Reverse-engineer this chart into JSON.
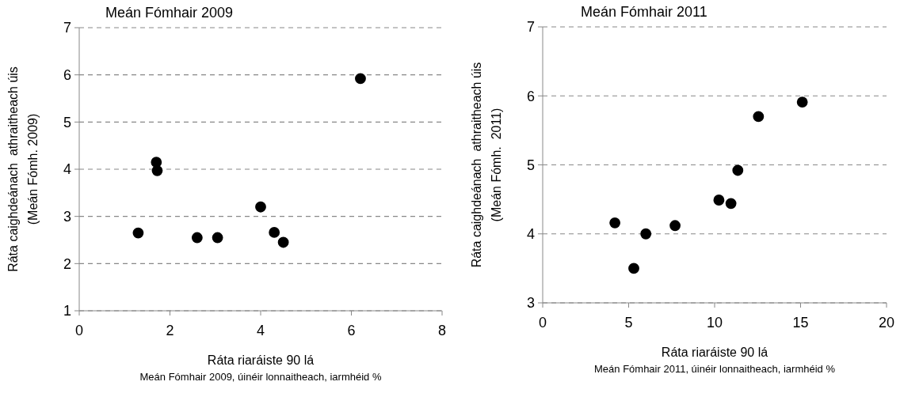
{
  "chart_data": [
    {
      "type": "scatter",
      "title": "Meán Fómhair 2009",
      "xlabel": "Ráta riaráiste 90 lá",
      "ylabel": "Ráta caighdeánach  athraitheach úis\n(Meán Fómh. 2009)",
      "annotations": [
        "Meán Fómhair 2009, úinéir lonnaitheach, iarmhéid %"
      ],
      "series": [
        {
          "color": "#000000",
          "x": [
            1.3,
            1.7,
            1.72,
            2.6,
            3.05,
            4.0,
            4.3,
            4.5,
            6.2
          ],
          "values": [
            2.65,
            4.15,
            3.97,
            2.55,
            2.55,
            3.2,
            2.66,
            2.45,
            5.92
          ]
        }
      ],
      "xlim": [
        0,
        8
      ],
      "xticks": [
        0,
        2,
        4,
        6,
        8
      ],
      "ylim": [
        1,
        7
      ],
      "yticks": [
        1,
        2,
        3,
        4,
        5,
        6,
        7
      ],
      "grid": "y",
      "marker": "circle"
    },
    {
      "type": "scatter",
      "title": "Meán Fómhair 2011",
      "xlabel": "Ráta riaráiste 90 lá",
      "ylabel": "Ráta caighdeánach  athraitheach úis\n(Meán Fómh.  2011)",
      "annotations": [
        "Meán Fómhair 2011, úinéir lonnaitheach, iarmhéid %"
      ],
      "series": [
        {
          "color": "#000000",
          "x": [
            4.2,
            5.3,
            6.0,
            7.7,
            10.25,
            10.95,
            11.35,
            12.55,
            15.1
          ],
          "values": [
            4.16,
            3.5,
            4.0,
            4.12,
            4.49,
            4.44,
            4.92,
            5.7,
            5.91
          ]
        }
      ],
      "xlim": [
        0,
        20
      ],
      "xticks": [
        0,
        5,
        10,
        15,
        20
      ],
      "ylim": [
        3,
        7
      ],
      "yticks": [
        3,
        4,
        5,
        6,
        7
      ],
      "grid": "y",
      "marker": "circle"
    }
  ]
}
